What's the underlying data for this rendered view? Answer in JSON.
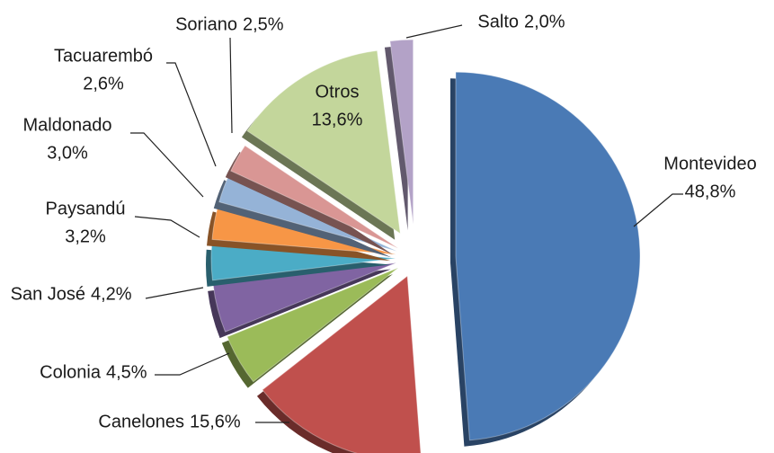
{
  "chart_data": {
    "type": "pie",
    "categories": [
      "Montevideo",
      "Canelones",
      "Colonia",
      "San José",
      "Paysandú",
      "Maldonado",
      "Tacuarembó",
      "Soriano",
      "Otros",
      "Salto"
    ],
    "values": [
      48.8,
      15.6,
      4.5,
      4.2,
      3.2,
      3.0,
      2.6,
      2.5,
      13.6,
      2.0
    ],
    "value_labels": [
      "48,8%",
      "15,6%",
      "4,5%",
      "4,2%",
      "3,2%",
      "3,0%",
      "2,6%",
      "2,5%",
      "13,6%",
      "2,0%"
    ],
    "colors": [
      "#4a7ab5",
      "#c0504d",
      "#9bbb59",
      "#8064a2",
      "#4bacc6",
      "#f79646",
      "#95b3d7",
      "#d99694",
      "#c3d69b",
      "#b3a2c7"
    ]
  }
}
